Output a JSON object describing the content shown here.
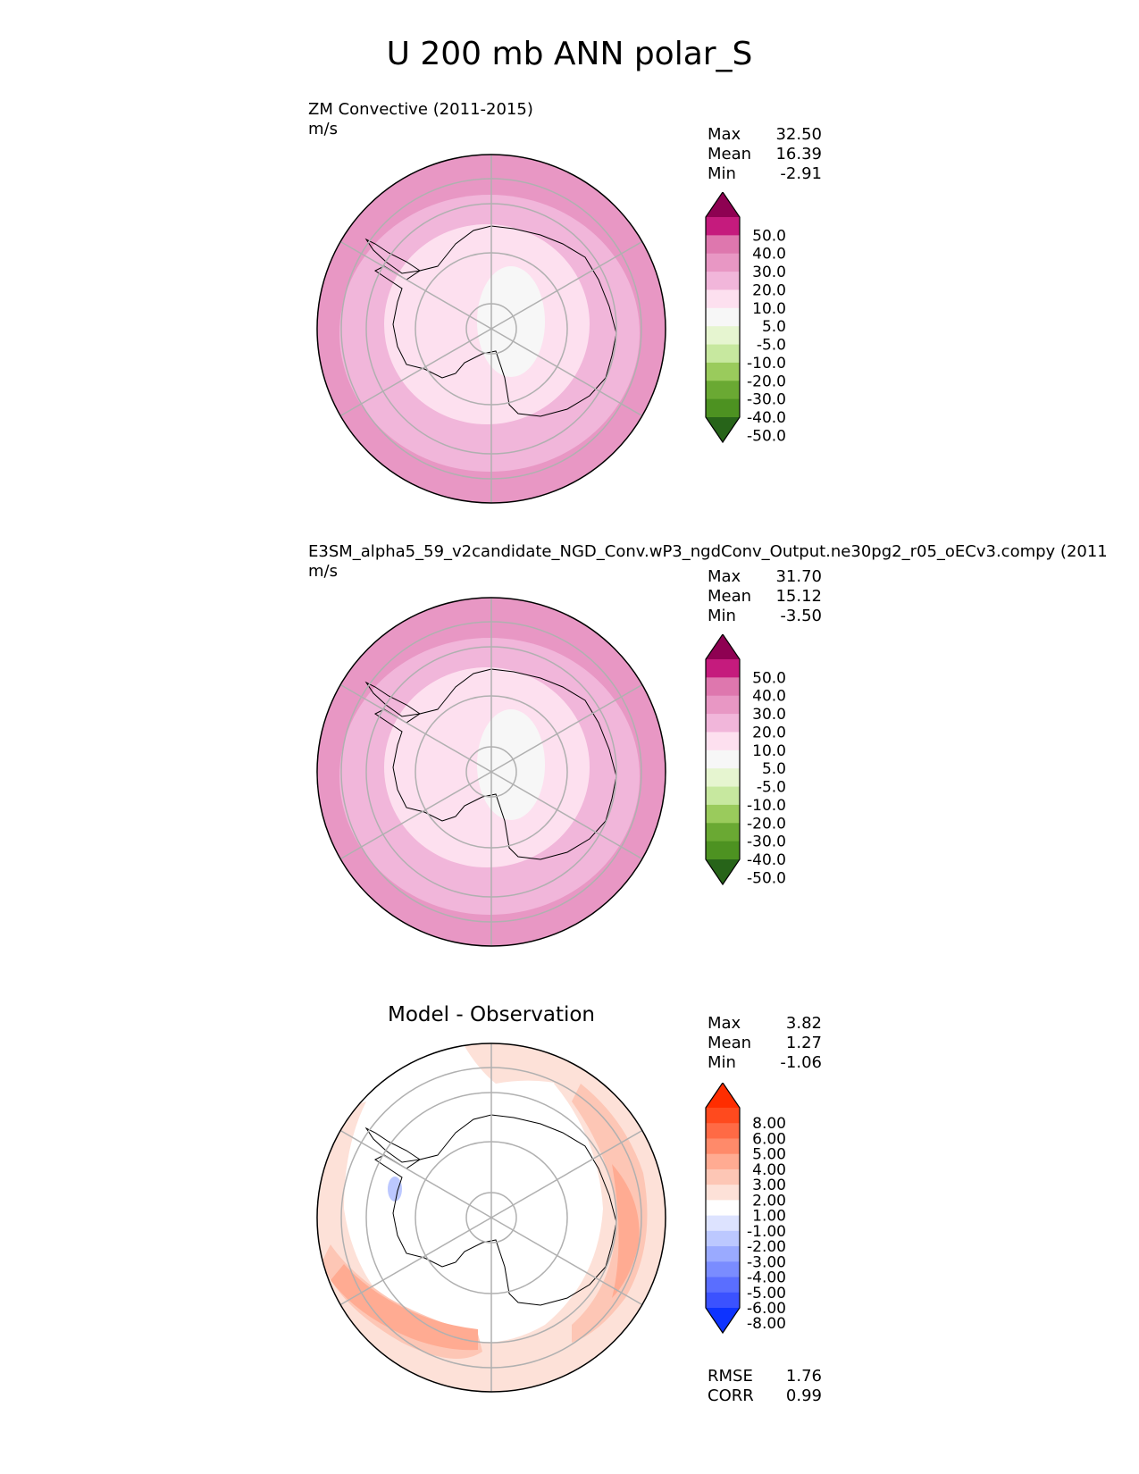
{
  "title": "U 200 mb ANN polar_S",
  "panels": [
    {
      "title": "ZM Convective (2011-2015)",
      "units": "m/s",
      "stats": {
        "max_label": "Max",
        "max": "32.50",
        "mean_label": "Mean",
        "mean": "16.39",
        "min_label": "Min",
        "min": "-2.91"
      },
      "colorbar": {
        "labels": [
          "50.0",
          "40.0",
          "30.0",
          "20.0",
          "10.0",
          "5.0",
          "-5.0",
          "-10.0",
          "-20.0",
          "-30.0",
          "-40.0",
          "-50.0"
        ],
        "colors": [
          "#8e0152",
          "#c51b7d",
          "#de77ae",
          "#e897c4",
          "#f1b6da",
          "#fde0ef",
          "#f7f7f7",
          "#e6f5d0",
          "#c7e89f",
          "#9acb5c",
          "#6aa933",
          "#4d9221",
          "#276419"
        ]
      },
      "rings": {
        "outer": "#e897c4",
        "mid": "#f1b6da",
        "inner": "#fde0ef",
        "pole": "#f7f7f7"
      }
    },
    {
      "title": "E3SM_alpha5_59_v2candidate_NGD_Conv.wP3_ngdConv_Output.ne30pg2_r05_oECv3.compy (2011",
      "units": "m/s",
      "stats": {
        "max_label": "Max",
        "max": "31.70",
        "mean_label": "Mean",
        "mean": "15.12",
        "min_label": "Min",
        "min": "-3.50"
      },
      "colorbar": {
        "labels": [
          "50.0",
          "40.0",
          "30.0",
          "20.0",
          "10.0",
          "5.0",
          "-5.0",
          "-10.0",
          "-20.0",
          "-30.0",
          "-40.0",
          "-50.0"
        ],
        "colors": [
          "#8e0152",
          "#c51b7d",
          "#de77ae",
          "#e897c4",
          "#f1b6da",
          "#fde0ef",
          "#f7f7f7",
          "#e6f5d0",
          "#c7e89f",
          "#9acb5c",
          "#6aa933",
          "#4d9221",
          "#276419"
        ]
      },
      "rings": {
        "outer": "#e897c4",
        "mid": "#f1b6da",
        "inner": "#fde0ef",
        "pole": "#f7f7f7"
      }
    },
    {
      "title": "Model - Observation",
      "stats": {
        "max_label": "Max",
        "max": "3.82",
        "mean_label": "Mean",
        "mean": "1.27",
        "min_label": "Min",
        "min": "-1.06"
      },
      "colorbar": {
        "labels": [
          "8.00",
          "6.00",
          "5.00",
          "4.00",
          "3.00",
          "2.00",
          "1.00",
          "-1.00",
          "-2.00",
          "-3.00",
          "-4.00",
          "-5.00",
          "-6.00",
          "-8.00"
        ],
        "colors": [
          "#ff2d00",
          "#ff4a1e",
          "#ff6a45",
          "#ff8a6a",
          "#ffab92",
          "#fdc6b5",
          "#fde1d8",
          "#ffffff",
          "#dde3ff",
          "#bcc8ff",
          "#9aaaff",
          "#7a8cff",
          "#5a6eff",
          "#3b52ff",
          "#0d33ff"
        ]
      },
      "metrics": {
        "rmse_label": "RMSE",
        "rmse": "1.76",
        "corr_label": "CORR",
        "corr": "0.99"
      }
    }
  ]
}
